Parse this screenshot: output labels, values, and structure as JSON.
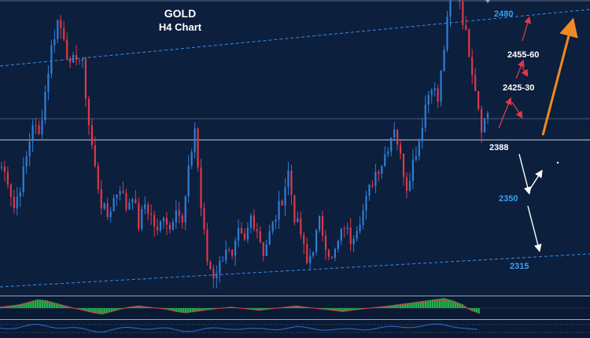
{
  "chart_data": {
    "type": "candlestick",
    "title": "GOLD",
    "subtitle": "H4 Chart",
    "colors": {
      "background": "#0c1f3d",
      "up": "#2f7fd6",
      "down": "#e0384a",
      "channel": "#3a8ee6",
      "level_line": "#c8d2de",
      "level_text": "#3a9ff0",
      "bullish_arrow": "#f08a24",
      "target_arrow": "#e0384a",
      "bearish_arrow": "#ffffff",
      "osc_up": "#22b04b",
      "osc_down": "#e0384a",
      "osc_line": "#2f6fd6"
    },
    "levels": [
      {
        "label": "2480",
        "value": 2480,
        "color": "#3a9ff0",
        "bold": false
      },
      {
        "label": "2455-60",
        "value": 2457,
        "color": "#ffffff",
        "bold": true
      },
      {
        "label": "2425-30",
        "value": 2427,
        "color": "#ffffff",
        "bold": true
      },
      {
        "label": "2388",
        "value": 2388,
        "color": "#ffffff",
        "bold": true
      },
      {
        "label": "2350",
        "value": 2350,
        "color": "#3a9ff0",
        "bold": false
      },
      {
        "label": "2315",
        "value": 2315,
        "color": "#3a9ff0",
        "bold": false
      }
    ],
    "price_path": [
      2373,
      2366,
      2350,
      2362,
      2378,
      2398,
      2390,
      2415,
      2440,
      2455,
      2447,
      2428,
      2436,
      2430,
      2397,
      2372,
      2352,
      2345,
      2355,
      2362,
      2350,
      2358,
      2340,
      2352,
      2345,
      2335,
      2347,
      2338,
      2352,
      2340,
      2370,
      2395,
      2350,
      2320,
      2312,
      2318,
      2328,
      2320,
      2335,
      2330,
      2345,
      2338,
      2325,
      2335,
      2345,
      2355,
      2370,
      2345,
      2335,
      2318,
      2328,
      2342,
      2330,
      2320,
      2330,
      2340,
      2332,
      2340,
      2348,
      2360,
      2370,
      2375,
      2385,
      2396,
      2378,
      2362,
      2376,
      2388,
      2408,
      2420,
      2410,
      2440,
      2468,
      2478,
      2456,
      2438,
      2418,
      2396,
      2403
    ],
    "oscillator": [
      1,
      2,
      3,
      5,
      7,
      6,
      4,
      2,
      0,
      -2,
      -4,
      -5,
      -3,
      -1,
      1,
      2,
      1,
      0,
      -1,
      -3,
      -4,
      -3,
      -2,
      -1,
      0,
      1,
      0,
      -1,
      -2,
      -1,
      0,
      1,
      2,
      1,
      0,
      -1,
      -2,
      -3,
      -2,
      -1,
      0,
      1,
      2,
      3,
      4,
      5,
      6,
      7,
      8,
      6,
      3,
      -2,
      -5
    ]
  }
}
